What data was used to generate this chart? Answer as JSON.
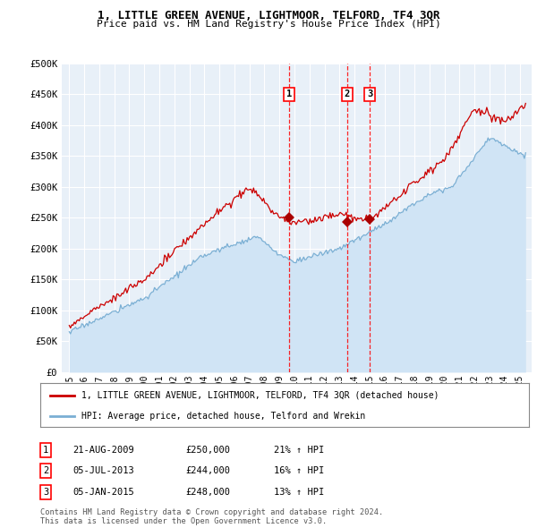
{
  "title": "1, LITTLE GREEN AVENUE, LIGHTMOOR, TELFORD, TF4 3QR",
  "subtitle": "Price paid vs. HM Land Registry's House Price Index (HPI)",
  "ylim": [
    0,
    500000
  ],
  "yticks": [
    0,
    50000,
    100000,
    150000,
    200000,
    250000,
    300000,
    350000,
    400000,
    450000,
    500000
  ],
  "ytick_labels": [
    "£0",
    "£50K",
    "£100K",
    "£150K",
    "£200K",
    "£250K",
    "£300K",
    "£350K",
    "£400K",
    "£450K",
    "£500K"
  ],
  "sale_color": "#cc0000",
  "hpi_fill_color": "#d0e4f5",
  "hpi_line_color": "#7aafd4",
  "background_color": "#e8f0f8",
  "sale_dates": [
    2009.64,
    2013.51,
    2015.01
  ],
  "sale_prices": [
    250000,
    244000,
    248000
  ],
  "legend_sale_label": "1, LITTLE GREEN AVENUE, LIGHTMOOR, TELFORD, TF4 3QR (detached house)",
  "legend_hpi_label": "HPI: Average price, detached house, Telford and Wrekin",
  "annotation_labels": [
    "1",
    "2",
    "3"
  ],
  "table_rows": [
    [
      "1",
      "21-AUG-2009",
      "£250,000",
      "21% ↑ HPI"
    ],
    [
      "2",
      "05-JUL-2013",
      "£244,000",
      "16% ↑ HPI"
    ],
    [
      "3",
      "05-JAN-2015",
      "£248,000",
      "13% ↑ HPI"
    ]
  ],
  "footer": "Contains HM Land Registry data © Crown copyright and database right 2024.\nThis data is licensed under the Open Government Licence v3.0."
}
